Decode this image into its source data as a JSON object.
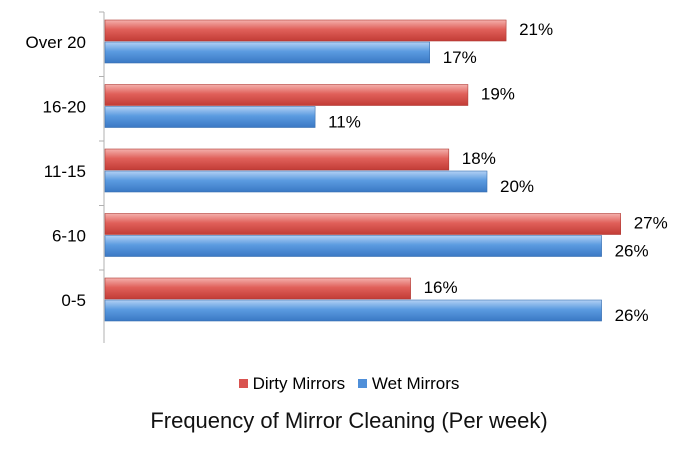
{
  "chart_data": {
    "type": "bar",
    "orientation": "horizontal",
    "categories": [
      "Over 20",
      "16-20",
      "11-15",
      "6-10",
      "0-5"
    ],
    "series": [
      {
        "name": "Dirty Mirrors",
        "values": [
          21,
          19,
          18,
          27,
          16
        ],
        "labels": [
          "21%",
          "19%",
          "18%",
          "27%",
          "16%"
        ],
        "color": "#d9534f"
      },
      {
        "name": "Wet Mirrors",
        "values": [
          17,
          11,
          20,
          26,
          26
        ],
        "labels": [
          "17%",
          "11%",
          "20%",
          "26%",
          "26%"
        ],
        "color": "#4f8fd9"
      }
    ],
    "xlabel": "Frequency of Mirror Cleaning (Per week)",
    "ylabel": "",
    "xlim": [
      0,
      27
    ],
    "grid": false,
    "legend_position": "bottom"
  }
}
